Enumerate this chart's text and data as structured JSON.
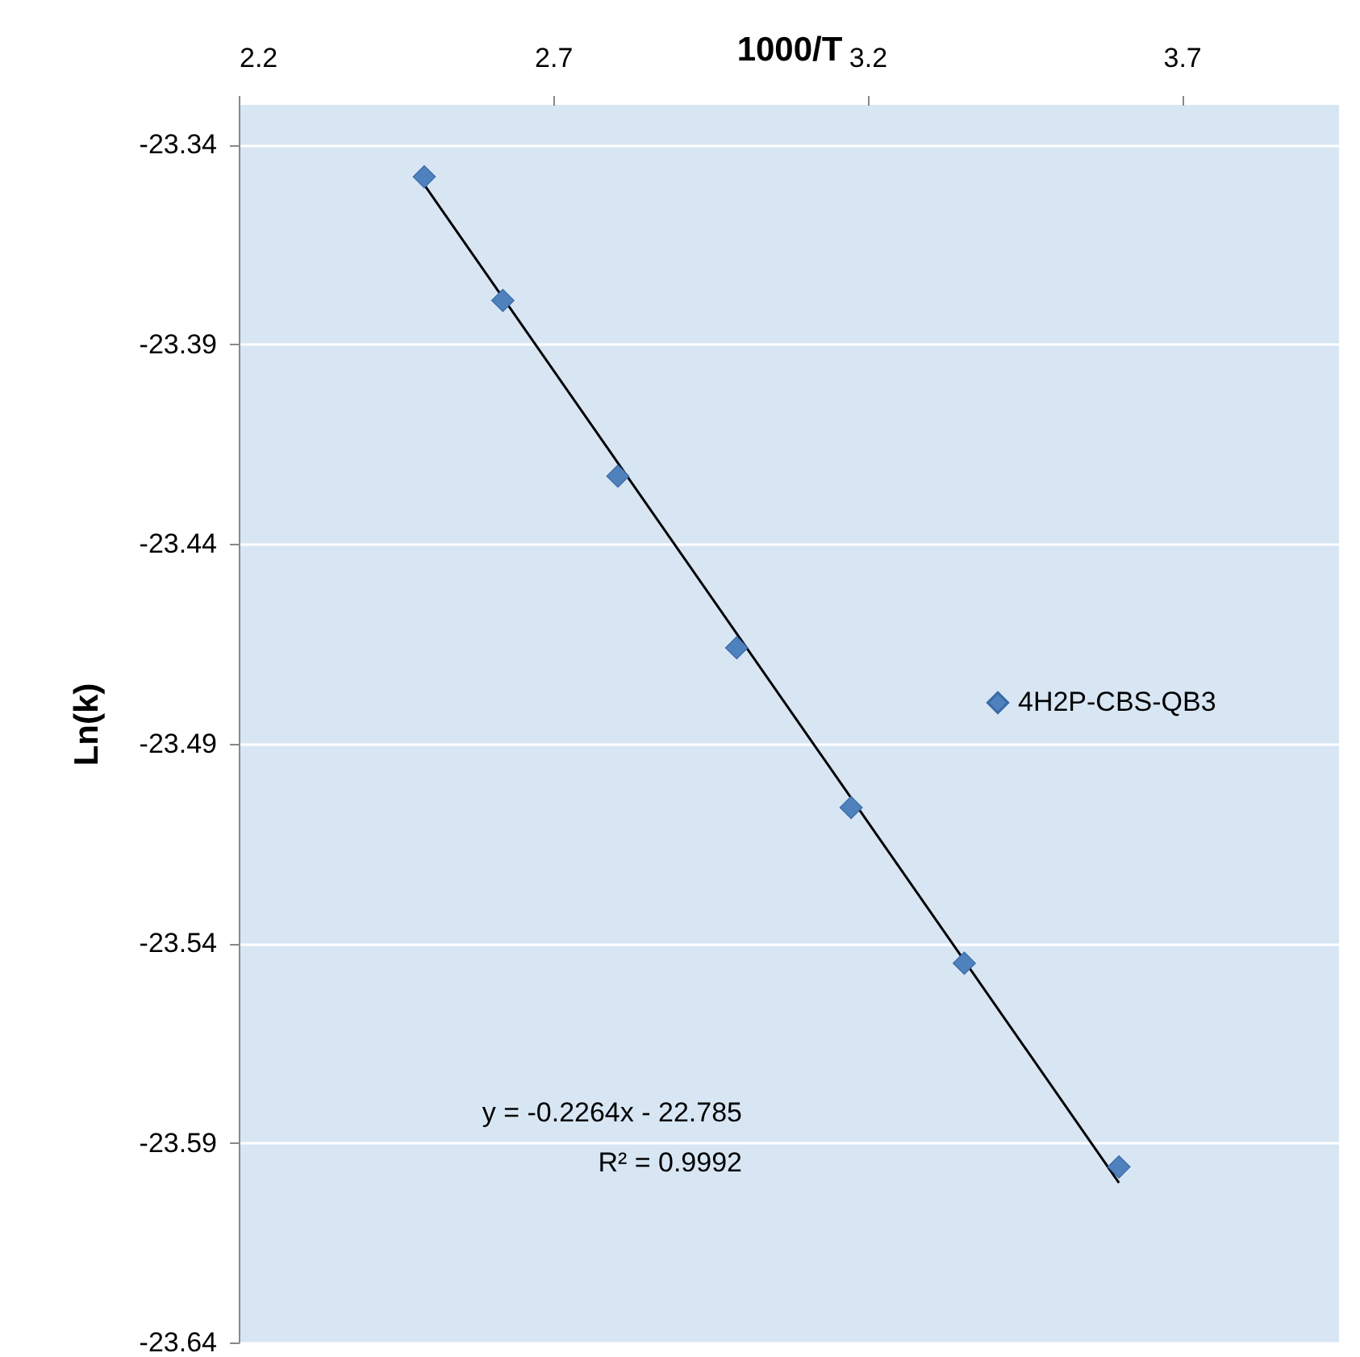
{
  "chart_data": {
    "type": "scatter",
    "xlabel": "1000/T",
    "ylabel": "Ln(k)",
    "xlim": [
      2.2,
      3.95
    ],
    "xticks": [
      2.2,
      2.7,
      3.2,
      3.7
    ],
    "ylim": [
      -23.64,
      -23.33
    ],
    "yticks": [
      -23.34,
      -23.39,
      -23.44,
      -23.49,
      -23.54,
      -23.59,
      -23.64
    ],
    "series": [
      {
        "name": "4H2P-CBS-QB3",
        "color": "#4f81bd",
        "x": [
          2.495,
          2.62,
          2.803,
          2.992,
          3.174,
          3.354,
          3.6
        ],
        "values": [
          -23.348,
          -23.379,
          -23.423,
          -23.466,
          -23.506,
          -23.545,
          -23.596
        ]
      },
      {
        "type": "line",
        "marker": "none",
        "color": "#000000",
        "x": [
          2.495,
          3.6
        ],
        "values": [
          -23.35,
          -23.6
        ]
      }
    ],
    "marker": "diamond",
    "grid": "y",
    "legend": "right",
    "annotations": [
      "y = -0.2264x - 22.785",
      "R² = 0.9992"
    ]
  }
}
